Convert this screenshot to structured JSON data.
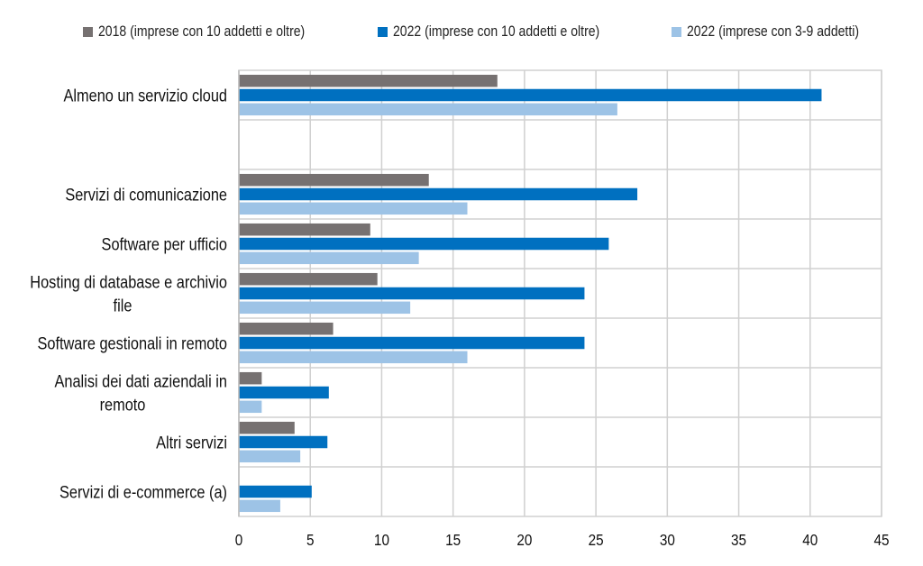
{
  "chart_data": {
    "type": "bar",
    "orientation": "horizontal",
    "title": "",
    "xlabel": "",
    "ylabel": "",
    "xlim": [
      0,
      45
    ],
    "x_ticks": [
      0,
      5,
      10,
      15,
      20,
      25,
      30,
      35,
      40,
      45
    ],
    "grid": true,
    "legend_position": "top",
    "categories": [
      [
        "Almeno un servizio cloud"
      ],
      [],
      [
        "Servizi di comunicazione"
      ],
      [
        "Software per ufficio"
      ],
      [
        "Hosting di database e archivio",
        "file"
      ],
      [
        "Software gestionali in remoto"
      ],
      [
        "Analisi dei dati aziendali in",
        "remoto"
      ],
      [
        "Altri servizi"
      ],
      [
        "Servizi di e-commerce (a)"
      ]
    ],
    "series": [
      {
        "name": "2018 (imprese con 10 addetti e oltre)",
        "color": "#767171",
        "values": [
          18.1,
          null,
          13.3,
          9.2,
          9.7,
          6.6,
          1.6,
          3.9,
          null
        ]
      },
      {
        "name": "2022 (imprese con 10 addetti e oltre)",
        "color": "#0070C0",
        "values": [
          40.8,
          null,
          27.9,
          25.9,
          24.2,
          24.2,
          6.3,
          6.2,
          5.1
        ]
      },
      {
        "name": "2022 (imprese con 3-9 addetti)",
        "color": "#9DC3E6",
        "values": [
          26.5,
          null,
          16.0,
          12.6,
          12.0,
          16.0,
          1.6,
          4.3,
          2.9
        ]
      }
    ]
  }
}
